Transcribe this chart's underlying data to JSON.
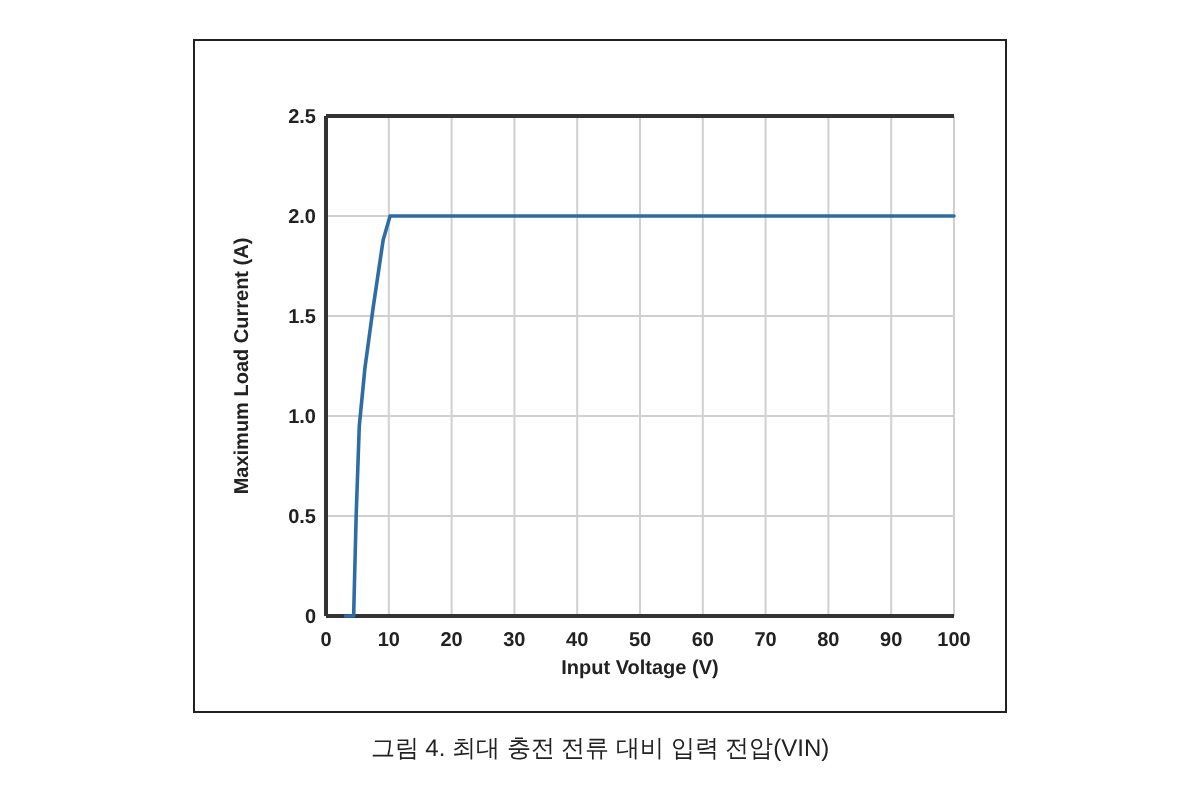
{
  "chart_data": {
    "type": "line",
    "xlabel": "Input Voltage (V)",
    "ylabel": "Maximum Load Current (A)",
    "x": [
      3.1,
      4.4,
      4.8,
      5.3,
      6.2,
      7.5,
      9.1,
      10.2,
      100
    ],
    "series": [
      {
        "color": "#2e6da4",
        "values": [
          0,
          0,
          0.5,
          0.95,
          1.24,
          1.54,
          1.88,
          2.0,
          2.0
        ]
      }
    ],
    "xlim": [
      0,
      100
    ],
    "ylim": [
      0,
      2.5
    ],
    "xticks": [
      0,
      10,
      20,
      30,
      40,
      50,
      60,
      70,
      80,
      90,
      100
    ],
    "yticks": [
      0,
      0.5,
      {
        "value": 1,
        "label": "1.0"
      },
      1.5,
      {
        "value": 2,
        "label": "2.0"
      },
      2.5
    ],
    "grid": true,
    "marker": "none",
    "line_style": "solid",
    "annotations": [
      "그림 4. 최대 충전 전류 대비 입력 전압(VIN)"
    ]
  }
}
